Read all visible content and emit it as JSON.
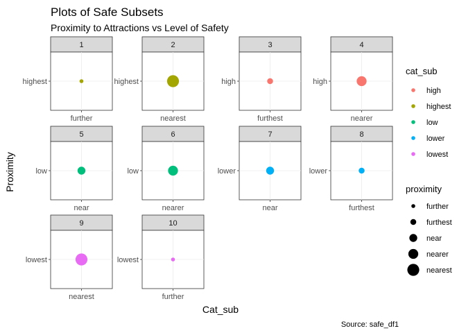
{
  "chart_data": {
    "type": "scatter",
    "title": "Plots of Safe Subsets",
    "subtitle": "Proximity to Attractions vs Level of Safety",
    "xlabel": "Cat_sub",
    "ylabel": "Proximity",
    "caption": "Source: safe_df1",
    "grid": true,
    "legend_placement": "right",
    "facets": [
      {
        "label": "1",
        "x": "further",
        "y": "highest",
        "color_group": "highest",
        "size_group": "further"
      },
      {
        "label": "2",
        "x": "nearest",
        "y": "highest",
        "color_group": "highest",
        "size_group": "nearest"
      },
      {
        "label": "3",
        "x": "furthest",
        "y": "high",
        "color_group": "high",
        "size_group": "furthest"
      },
      {
        "label": "4",
        "x": "nearer",
        "y": "high",
        "color_group": "high",
        "size_group": "nearer"
      },
      {
        "label": "5",
        "x": "near",
        "y": "low",
        "color_group": "low",
        "size_group": "near"
      },
      {
        "label": "6",
        "x": "nearer",
        "y": "low",
        "color_group": "low",
        "size_group": "nearer"
      },
      {
        "label": "7",
        "x": "near",
        "y": "lower",
        "color_group": "lower",
        "size_group": "near"
      },
      {
        "label": "8",
        "x": "furthest",
        "y": "lower",
        "color_group": "lower",
        "size_group": "furthest"
      },
      {
        "label": "9",
        "x": "nearest",
        "y": "lowest",
        "color_group": "lowest",
        "size_group": "nearest"
      },
      {
        "label": "10",
        "x": "further",
        "y": "lowest",
        "color_group": "lowest",
        "size_group": "further"
      }
    ],
    "color_legend": {
      "title": "cat_sub",
      "items": [
        {
          "label": "high",
          "color": "#F8766D"
        },
        {
          "label": "highest",
          "color": "#A3A500"
        },
        {
          "label": "low",
          "color": "#00BF7D"
        },
        {
          "label": "lower",
          "color": "#00B0F6"
        },
        {
          "label": "lowest",
          "color": "#E76BF3"
        }
      ]
    },
    "size_legend": {
      "title": "proximity",
      "items": [
        {
          "label": "further",
          "level": 1
        },
        {
          "label": "furthest",
          "level": 2
        },
        {
          "label": "near",
          "level": 3
        },
        {
          "label": "nearer",
          "level": 4
        },
        {
          "label": "nearest",
          "level": 5
        }
      ]
    }
  }
}
